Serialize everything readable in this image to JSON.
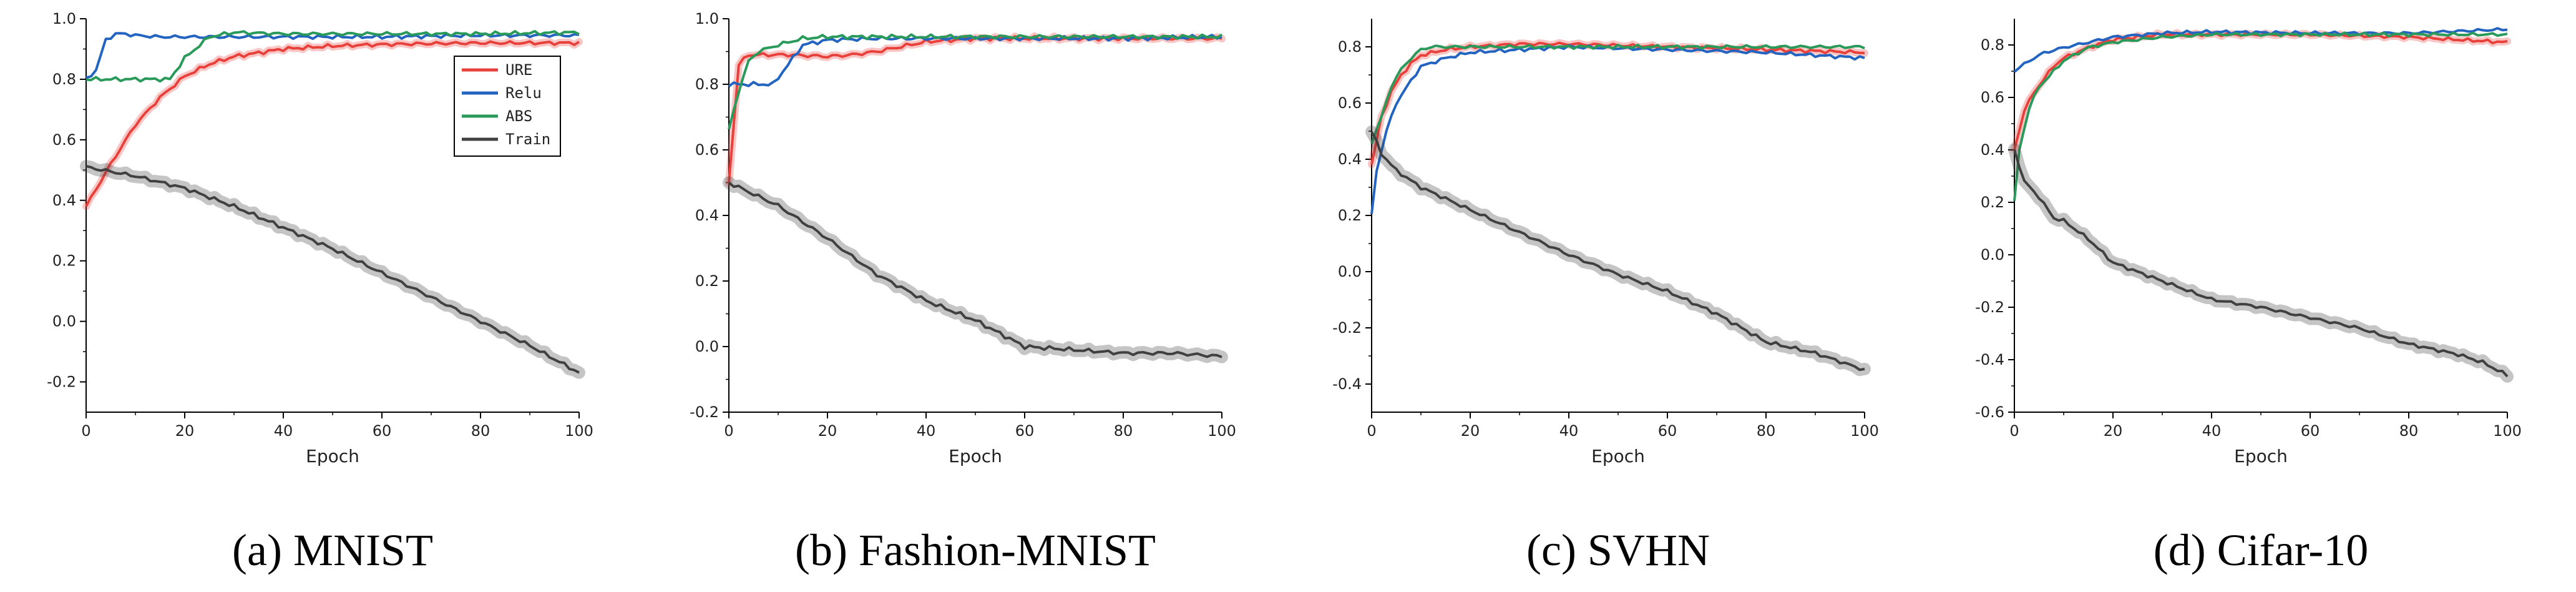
{
  "chart_data": [
    {
      "type": "line",
      "caption": "(a) MNIST",
      "xlabel": "Epoch",
      "ylabel": "",
      "xlim": [
        0,
        100
      ],
      "ylim": [
        -0.3,
        1.0
      ],
      "xticks": [
        "0",
        "20",
        "40",
        "60",
        "80",
        "100"
      ],
      "yticks": [
        "-0.2",
        "0.0",
        "0.2",
        "0.4",
        "0.6",
        "0.8",
        "1.0"
      ],
      "ytick_values": [
        -0.2,
        0.0,
        0.2,
        0.4,
        0.6,
        0.8,
        1.0
      ],
      "legend": [
        "URE",
        "Relu",
        "ABS",
        "Train"
      ],
      "legend_position": "top-right",
      "series": [
        {
          "name": "URE",
          "color": "#e8413c",
          "x": [
            0,
            5,
            10,
            15,
            20,
            25,
            30,
            40,
            50,
            60,
            70,
            80,
            90,
            100
          ],
          "values": [
            0.38,
            0.52,
            0.65,
            0.74,
            0.81,
            0.85,
            0.875,
            0.9,
            0.91,
            0.915,
            0.918,
            0.92,
            0.92,
            0.92
          ]
        },
        {
          "name": "Relu",
          "color": "#2264c0",
          "x": [
            0,
            2,
            4,
            6,
            8,
            10,
            15,
            20,
            30,
            40,
            60,
            80,
            100
          ],
          "values": [
            0.8,
            0.83,
            0.93,
            0.95,
            0.95,
            0.945,
            0.94,
            0.94,
            0.94,
            0.94,
            0.94,
            0.945,
            0.945
          ]
        },
        {
          "name": "ABS",
          "color": "#2a9a5a",
          "x": [
            0,
            5,
            10,
            15,
            17,
            20,
            25,
            30,
            40,
            60,
            80,
            100
          ],
          "values": [
            0.8,
            0.8,
            0.8,
            0.8,
            0.8,
            0.87,
            0.94,
            0.955,
            0.95,
            0.95,
            0.95,
            0.955
          ]
        },
        {
          "name": "Train",
          "color": "#404040",
          "x": [
            0,
            10,
            20,
            30,
            40,
            50,
            60,
            70,
            80,
            90,
            100
          ],
          "values": [
            0.51,
            0.48,
            0.44,
            0.38,
            0.31,
            0.24,
            0.16,
            0.08,
            0.0,
            -0.08,
            -0.17
          ]
        }
      ]
    },
    {
      "type": "line",
      "caption": "(b) Fashion-MNIST",
      "xlabel": "Epoch",
      "ylabel": "",
      "xlim": [
        0,
        100
      ],
      "ylim": [
        -0.2,
        1.0
      ],
      "xticks": [
        "0",
        "20",
        "40",
        "60",
        "80",
        "100"
      ],
      "yticks": [
        "-0.2",
        "0.0",
        "0.2",
        "0.4",
        "0.6",
        "0.8",
        "1.0"
      ],
      "ytick_values": [
        -0.2,
        0.0,
        0.2,
        0.4,
        0.6,
        0.8,
        1.0
      ],
      "series": [
        {
          "name": "URE",
          "color": "#e8413c",
          "x": [
            0,
            2,
            4,
            8,
            12,
            20,
            25,
            30,
            40,
            50,
            60,
            80,
            100
          ],
          "values": [
            0.5,
            0.86,
            0.89,
            0.89,
            0.89,
            0.885,
            0.89,
            0.9,
            0.93,
            0.94,
            0.94,
            0.94,
            0.94
          ]
        },
        {
          "name": "Relu",
          "color": "#2264c0",
          "x": [
            0,
            3,
            6,
            9,
            12,
            15,
            20,
            30,
            40,
            60,
            80,
            100
          ],
          "values": [
            0.8,
            0.8,
            0.8,
            0.8,
            0.86,
            0.92,
            0.935,
            0.94,
            0.94,
            0.94,
            0.94,
            0.945
          ]
        },
        {
          "name": "ABS",
          "color": "#2a9a5a",
          "x": [
            0,
            2,
            4,
            6,
            10,
            15,
            20,
            30,
            40,
            50,
            60,
            80,
            100
          ],
          "values": [
            0.66,
            0.78,
            0.87,
            0.9,
            0.92,
            0.94,
            0.945,
            0.945,
            0.945,
            0.945,
            0.945,
            0.945,
            0.945
          ]
        },
        {
          "name": "Train",
          "color": "#404040",
          "x": [
            0,
            10,
            20,
            30,
            40,
            50,
            55,
            60,
            70,
            80,
            90,
            100
          ],
          "values": [
            0.5,
            0.43,
            0.33,
            0.22,
            0.14,
            0.08,
            0.04,
            0.0,
            -0.01,
            -0.02,
            -0.02,
            -0.03
          ]
        }
      ]
    },
    {
      "type": "line",
      "caption": "(c) SVHN",
      "xlabel": "Epoch",
      "ylabel": "",
      "xlim": [
        0,
        100
      ],
      "ylim": [
        -0.5,
        0.9
      ],
      "xticks": [
        "0",
        "20",
        "40",
        "60",
        "80",
        "100"
      ],
      "yticks": [
        "-0.4",
        "-0.2",
        "0.0",
        "0.2",
        "0.4",
        "0.6",
        "0.8"
      ],
      "ytick_values": [
        -0.4,
        -0.2,
        0.0,
        0.2,
        0.4,
        0.6,
        0.8
      ],
      "series": [
        {
          "name": "URE",
          "color": "#e8413c",
          "x": [
            0,
            2,
            4,
            6,
            8,
            10,
            15,
            20,
            30,
            40,
            60,
            80,
            100
          ],
          "values": [
            0.38,
            0.55,
            0.64,
            0.7,
            0.74,
            0.77,
            0.79,
            0.8,
            0.81,
            0.81,
            0.8,
            0.79,
            0.78
          ]
        },
        {
          "name": "Relu",
          "color": "#2264c0",
          "x": [
            0,
            1,
            3,
            5,
            8,
            10,
            15,
            20,
            30,
            40,
            60,
            80,
            100
          ],
          "values": [
            0.2,
            0.36,
            0.5,
            0.6,
            0.68,
            0.73,
            0.76,
            0.78,
            0.79,
            0.8,
            0.79,
            0.78,
            0.76
          ]
        },
        {
          "name": "ABS",
          "color": "#2a9a5a",
          "x": [
            0,
            2,
            4,
            6,
            8,
            10,
            12,
            20,
            40,
            60,
            80,
            100
          ],
          "values": [
            0.46,
            0.55,
            0.66,
            0.72,
            0.76,
            0.79,
            0.8,
            0.8,
            0.8,
            0.8,
            0.8,
            0.8
          ]
        },
        {
          "name": "Train",
          "color": "#404040",
          "x": [
            0,
            2,
            5,
            10,
            20,
            30,
            40,
            50,
            60,
            70,
            80,
            90,
            100
          ],
          "values": [
            0.5,
            0.42,
            0.36,
            0.3,
            0.22,
            0.14,
            0.06,
            -0.01,
            -0.07,
            -0.15,
            -0.25,
            -0.29,
            -0.35
          ]
        }
      ]
    },
    {
      "type": "line",
      "caption": "(d) Cifar-10",
      "xlabel": "Epoch",
      "ylabel": "",
      "xlim": [
        0,
        100
      ],
      "ylim": [
        -0.6,
        0.9
      ],
      "xticks": [
        "0",
        "20",
        "40",
        "60",
        "80",
        "100"
      ],
      "yticks": [
        "-0.6",
        "-0.4",
        "-0.2",
        "0.0",
        "0.2",
        "0.4",
        "0.6",
        "0.8"
      ],
      "ytick_values": [
        -0.6,
        -0.4,
        -0.2,
        0.0,
        0.2,
        0.4,
        0.6,
        0.8
      ],
      "series": [
        {
          "name": "URE",
          "color": "#e8413c",
          "x": [
            0,
            2,
            4,
            6,
            8,
            10,
            15,
            20,
            30,
            40,
            60,
            80,
            100
          ],
          "values": [
            0.4,
            0.55,
            0.62,
            0.67,
            0.72,
            0.75,
            0.79,
            0.82,
            0.84,
            0.84,
            0.84,
            0.83,
            0.81
          ]
        },
        {
          "name": "Relu",
          "color": "#2264c0",
          "x": [
            0,
            3,
            6,
            10,
            15,
            20,
            30,
            40,
            60,
            80,
            100
          ],
          "values": [
            0.7,
            0.74,
            0.77,
            0.79,
            0.81,
            0.83,
            0.845,
            0.85,
            0.845,
            0.845,
            0.86
          ]
        },
        {
          "name": "ABS",
          "color": "#2a9a5a",
          "x": [
            0,
            1,
            3,
            5,
            8,
            10,
            15,
            20,
            30,
            40,
            60,
            80,
            100
          ],
          "values": [
            0.2,
            0.4,
            0.56,
            0.64,
            0.7,
            0.74,
            0.79,
            0.81,
            0.83,
            0.84,
            0.84,
            0.84,
            0.84
          ]
        },
        {
          "name": "Train",
          "color": "#404040",
          "x": [
            0,
            2,
            5,
            8,
            10,
            15,
            20,
            30,
            40,
            50,
            60,
            70,
            80,
            90,
            95,
            100
          ],
          "values": [
            0.4,
            0.28,
            0.22,
            0.14,
            0.13,
            0.06,
            -0.03,
            -0.1,
            -0.17,
            -0.2,
            -0.24,
            -0.28,
            -0.34,
            -0.38,
            -0.41,
            -0.46
          ]
        }
      ]
    }
  ]
}
